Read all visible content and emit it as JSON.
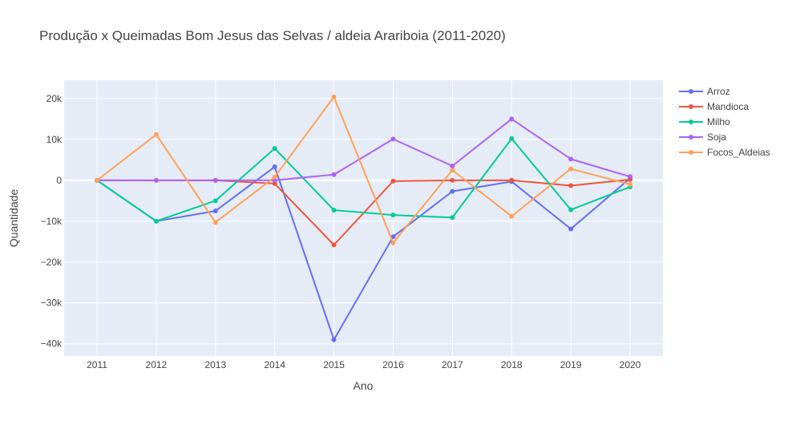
{
  "chart_data": {
    "type": "line",
    "title": "Produção x Queimadas Bom Jesus das Selvas / aldeia Arariboia  (2011-2020)",
    "xlabel": "Ano",
    "ylabel": "Quantidade",
    "x": [
      2011,
      2012,
      2013,
      2014,
      2015,
      2016,
      2017,
      2018,
      2019,
      2020
    ],
    "x_tick_labels": [
      "2011",
      "2012",
      "2013",
      "2014",
      "2015",
      "2016",
      "2017",
      "2018",
      "2019",
      "2020"
    ],
    "y_ticks": [
      20000,
      10000,
      0,
      -10000,
      -20000,
      -30000,
      -40000
    ],
    "y_tick_labels": [
      "20k",
      "10k",
      "0",
      "−10k",
      "−20k",
      "−30k",
      "−40k"
    ],
    "ylim": [
      -43000,
      24500
    ],
    "grid": true,
    "legend_position": "right",
    "plot_background": "#e5ecf6",
    "series": [
      {
        "name": "Arroz",
        "color": "#636efa",
        "values": [
          0,
          -10000,
          -7500,
          3300,
          -39000,
          -13800,
          -2700,
          -300,
          -11900,
          500
        ]
      },
      {
        "name": "Mandioca",
        "color": "#ef553b",
        "values": [
          0,
          0,
          0,
          -800,
          -15800,
          -200,
          0,
          0,
          -1300,
          200
        ]
      },
      {
        "name": "Milho",
        "color": "#00cc96",
        "values": [
          0,
          -10000,
          -5000,
          7800,
          -7300,
          -8500,
          -9100,
          10200,
          -7200,
          -1600
        ]
      },
      {
        "name": "Soja",
        "color": "#ab63fa",
        "values": [
          0,
          0,
          0,
          0,
          1400,
          10100,
          3500,
          15000,
          5200,
          900
        ]
      },
      {
        "name": "Focos_Aldeias",
        "color": "#ffa15a",
        "values": [
          0,
          11200,
          -10300,
          800,
          20400,
          -15300,
          2500,
          -8800,
          2800,
          -1000
        ]
      }
    ]
  }
}
